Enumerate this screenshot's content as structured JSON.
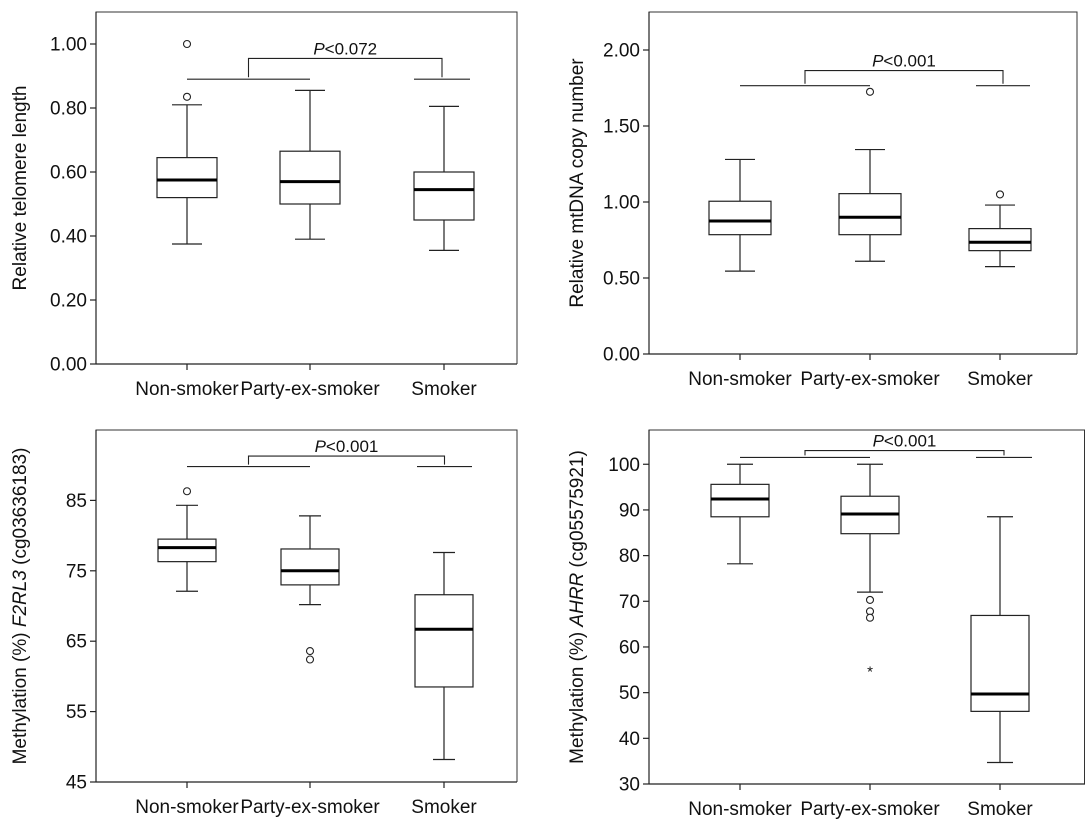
{
  "chart_data": [
    {
      "type": "box",
      "xlabel": "",
      "ylabel": "Relative telomere length",
      "ylabel_parts": [
        {
          "text": "Relative telomere length",
          "italic": false
        }
      ],
      "ylim": [
        0,
        1.1
      ],
      "yticks": [
        0,
        0.2,
        0.4,
        0.6,
        0.8,
        1.0
      ],
      "ytick_labels": [
        "0.00",
        "0.20",
        "0.40",
        "0.60",
        "0.80",
        "1.00"
      ],
      "categories": [
        "Non-smoker",
        "Party-ex-smoker",
        "Smoker"
      ],
      "boxes": [
        {
          "min": 0.375,
          "q1": 0.52,
          "median": 0.575,
          "q3": 0.645,
          "max": 0.81,
          "outliers": [
            {
              "value": 1.0,
              "marker": "circle"
            },
            {
              "value": 0.835,
              "marker": "circle"
            }
          ]
        },
        {
          "min": 0.39,
          "q1": 0.5,
          "median": 0.57,
          "q3": 0.665,
          "max": 0.855,
          "outliers": []
        },
        {
          "min": 0.355,
          "q1": 0.45,
          "median": 0.545,
          "q3": 0.6,
          "max": 0.805,
          "outliers": []
        }
      ],
      "significance": {
        "label_prefix": "P",
        "label_suffix": "<0.072",
        "level": 0.955,
        "group_level": 0.89
      },
      "grid": false
    },
    {
      "type": "box",
      "xlabel": "",
      "ylabel": "Relative mtDNA copy number",
      "ylabel_parts": [
        {
          "text": "Relative mtDNA copy number",
          "italic": false
        }
      ],
      "ylim": [
        0,
        2.25
      ],
      "yticks": [
        0,
        0.5,
        1.0,
        1.5,
        2.0
      ],
      "ytick_labels": [
        "0.00",
        "0.50",
        "1.00",
        "1.50",
        "2.00"
      ],
      "categories": [
        "Non-smoker",
        "Party-ex-smoker",
        "Smoker"
      ],
      "boxes": [
        {
          "min": 0.545,
          "q1": 0.785,
          "median": 0.875,
          "q3": 1.005,
          "max": 1.28,
          "outliers": []
        },
        {
          "min": 0.61,
          "q1": 0.785,
          "median": 0.9,
          "q3": 1.055,
          "max": 1.345,
          "outliers": [
            {
              "value": 1.725,
              "marker": "circle"
            }
          ]
        },
        {
          "min": 0.575,
          "q1": 0.68,
          "median": 0.735,
          "q3": 0.825,
          "max": 0.98,
          "outliers": [
            {
              "value": 1.05,
              "marker": "circle"
            }
          ]
        }
      ],
      "significance": {
        "label_prefix": "P",
        "label_suffix": "<0.001",
        "level": 1.865,
        "group_level": 1.765
      },
      "grid": false
    },
    {
      "type": "box",
      "xlabel": "",
      "ylabel": "Methylation (%) F2RL3 (cg03636183)",
      "ylabel_parts": [
        {
          "text": "Methylation (%) ",
          "italic": false
        },
        {
          "text": "F2RL3",
          "italic": true
        },
        {
          "text": " (cg03636183)",
          "italic": false
        }
      ],
      "ylim": [
        45,
        95
      ],
      "yticks": [
        45,
        55,
        65,
        75,
        85
      ],
      "ytick_labels": [
        "45",
        "55",
        "65",
        "75",
        "85"
      ],
      "categories": [
        "Non-smoker",
        "Party-ex-smoker",
        "Smoker"
      ],
      "boxes": [
        {
          "min": 72.1,
          "q1": 76.3,
          "median": 78.3,
          "q3": 79.5,
          "max": 84.3,
          "outliers": [
            {
              "value": 86.3,
              "marker": "circle"
            }
          ]
        },
        {
          "min": 70.2,
          "q1": 73.0,
          "median": 75.0,
          "q3": 78.1,
          "max": 82.8,
          "outliers": [
            {
              "value": 63.6,
              "marker": "circle"
            },
            {
              "value": 62.4,
              "marker": "circle"
            }
          ]
        },
        {
          "min": 48.2,
          "q1": 58.5,
          "median": 66.7,
          "q3": 71.6,
          "max": 77.6,
          "outliers": []
        }
      ],
      "significance": {
        "label_prefix": "P",
        "label_suffix": "<0.001",
        "level": 91.3,
        "group_level": 89.8
      },
      "grid": false
    },
    {
      "type": "box",
      "xlabel": "",
      "ylabel": "Methylation (%) AHRR (cg05575921)",
      "ylabel_parts": [
        {
          "text": "Methylation (%) ",
          "italic": false
        },
        {
          "text": "AHRR",
          "italic": true
        },
        {
          "text": " (cg05575921)",
          "italic": false
        }
      ],
      "ylim": [
        30,
        107.5
      ],
      "yticks": [
        30,
        40,
        50,
        60,
        70,
        80,
        90,
        100
      ],
      "ytick_labels": [
        "30",
        "40",
        "50",
        "60",
        "70",
        "80",
        "90",
        "100"
      ],
      "categories": [
        "Non-smoker",
        "Party-ex-smoker",
        "Smoker"
      ],
      "boxes": [
        {
          "min": 78.2,
          "q1": 88.5,
          "median": 92.4,
          "q3": 95.6,
          "max": 100,
          "outliers": []
        },
        {
          "min": 72.0,
          "q1": 84.8,
          "median": 89.1,
          "q3": 93.0,
          "max": 100,
          "outliers": [
            {
              "value": 70.3,
              "marker": "circle"
            },
            {
              "value": 67.8,
              "marker": "circle"
            },
            {
              "value": 66.4,
              "marker": "circle"
            },
            {
              "value": 54.8,
              "marker": "star"
            }
          ]
        },
        {
          "min": 34.7,
          "q1": 45.9,
          "median": 49.7,
          "q3": 66.9,
          "max": 88.5,
          "outliers": []
        }
      ],
      "significance": {
        "label_prefix": "P",
        "label_suffix": "<0.001",
        "level": 103.0,
        "group_level": 101.5
      },
      "grid": false
    }
  ]
}
